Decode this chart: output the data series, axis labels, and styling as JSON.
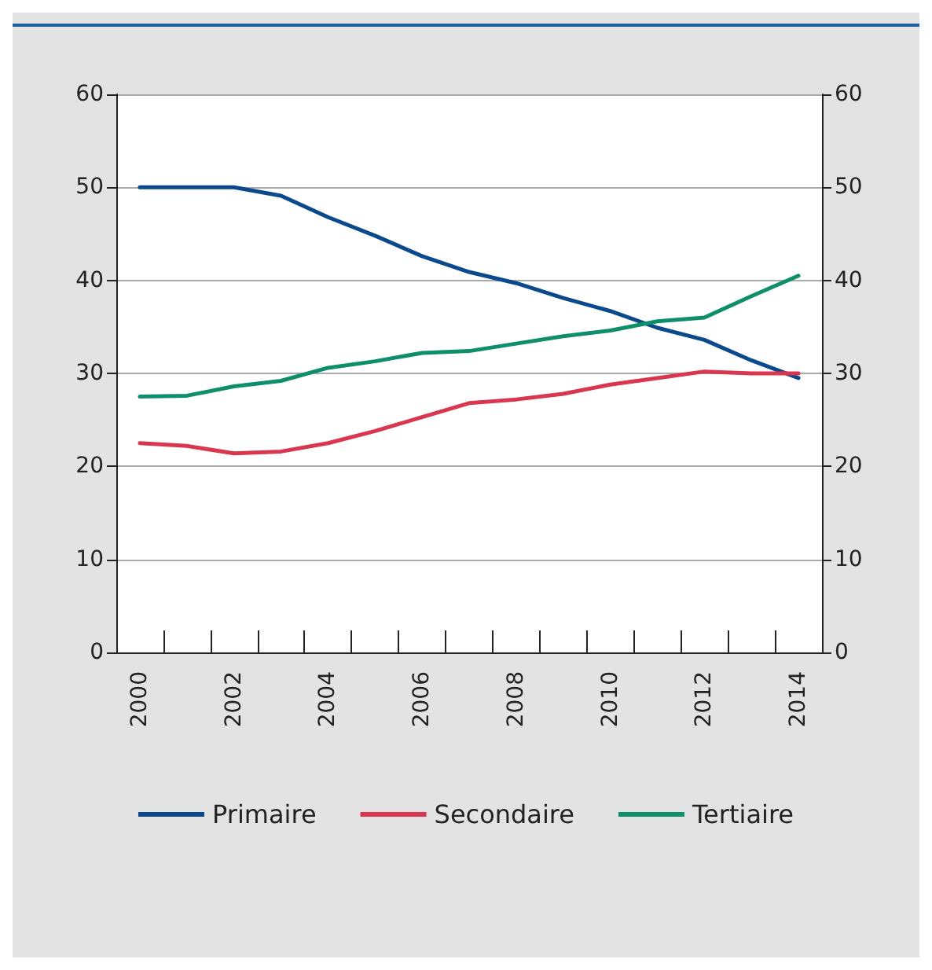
{
  "chart_data": {
    "type": "line",
    "categories": [
      "2000",
      null,
      "2002",
      null,
      "2004",
      null,
      "2006",
      null,
      "2008",
      null,
      "2010",
      null,
      "2012",
      null,
      "2014"
    ],
    "series": [
      {
        "name": "Primaire",
        "color": "#0a4a8c",
        "values": [
          50,
          50,
          50,
          49.1,
          46.8,
          44.8,
          42.6,
          40.9,
          39.7,
          38.1,
          36.7,
          34.9,
          33.6,
          31.4,
          29.5
        ]
      },
      {
        "name": "Secondaire",
        "color": "#d9364f",
        "values": [
          22.5,
          22.2,
          21.4,
          21.6,
          22.5,
          23.8,
          25.3,
          26.8,
          27.2,
          27.8,
          28.8,
          29.5,
          30.2,
          30.0,
          30.0
        ]
      },
      {
        "name": "Tertiaire",
        "color": "#0e8f6a",
        "values": [
          27.5,
          27.6,
          28.6,
          29.2,
          30.6,
          31.3,
          32.2,
          32.4,
          33.2,
          34.0,
          34.6,
          35.6,
          36.0,
          38.3,
          40.5
        ]
      }
    ],
    "ylim": [
      0,
      60
    ],
    "yticks": [
      0,
      10,
      20,
      30,
      40,
      50,
      60
    ],
    "y2lim": [
      0,
      60
    ],
    "y2ticks": [
      0,
      10,
      20,
      30,
      40,
      50,
      60
    ],
    "grid": "y",
    "legend": "bottom",
    "marker": "none",
    "line_style": "solid"
  }
}
